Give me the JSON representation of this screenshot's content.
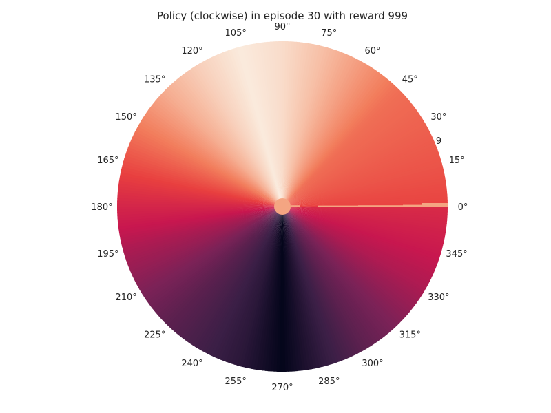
{
  "chart_data": {
    "type": "heatmap",
    "subtype": "polar",
    "title": "Policy (clockwise) in episode 30 with reward 999",
    "grid": false,
    "legend": "none",
    "colormap": [
      "#03051a",
      "#3b1f46",
      "#7a2257",
      "#c8174f",
      "#e83f3f",
      "#f27d5c",
      "#f6b59a",
      "#faebdd"
    ],
    "center_color": "#f4a582",
    "theta_ticks": [
      "0°",
      "15°",
      "30°",
      "45°",
      "60°",
      "75°",
      "90°",
      "105°",
      "120°",
      "135°",
      "150°",
      "165°",
      "180°",
      "195°",
      "210°",
      "225°",
      "240°",
      "255°",
      "270°",
      "285°",
      "300°",
      "315°",
      "330°",
      "345°"
    ],
    "radial_tick_label": "9",
    "theta_deg": [
      0,
      15,
      30,
      45,
      60,
      75,
      90,
      105,
      120,
      135,
      150,
      165,
      180,
      195,
      210,
      225,
      240,
      255,
      270,
      285,
      300,
      315,
      330,
      345,
      360
    ],
    "value": [
      0.58,
      0.62,
      0.65,
      0.68,
      0.78,
      0.88,
      0.96,
      1.0,
      0.93,
      0.84,
      0.72,
      0.6,
      0.48,
      0.38,
      0.3,
      0.22,
      0.16,
      0.1,
      0.0,
      0.12,
      0.22,
      0.3,
      0.38,
      0.44,
      0.5
    ],
    "value_range": [
      0,
      1
    ]
  }
}
